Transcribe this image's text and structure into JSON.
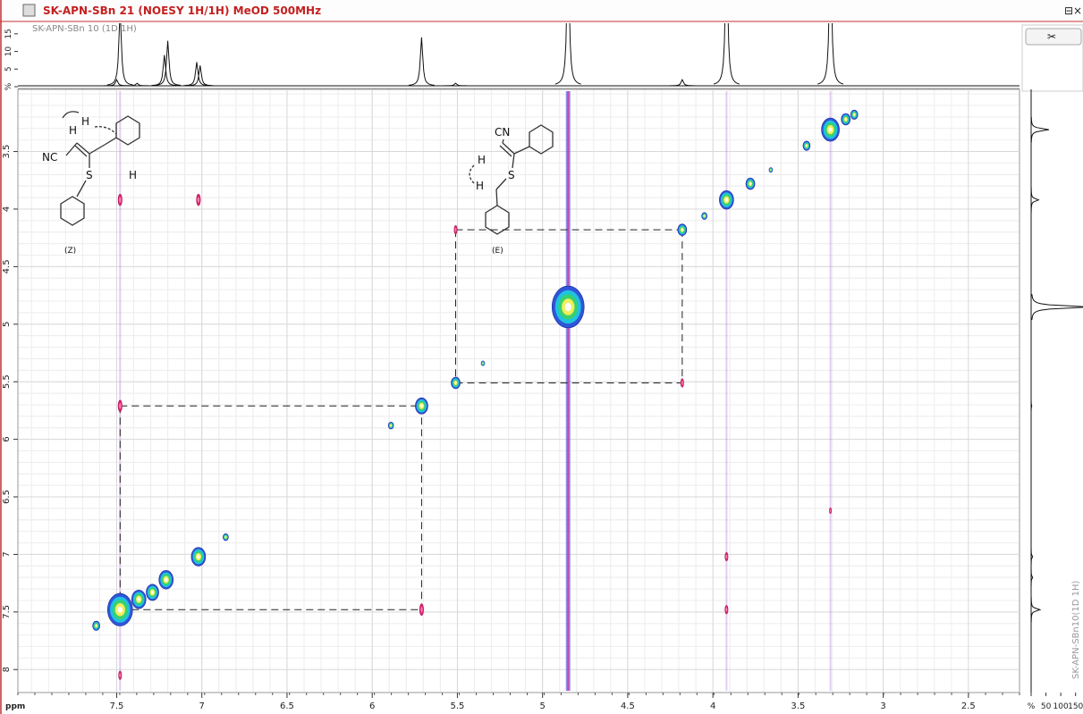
{
  "window": {
    "title": "SK-APN-SBn 21 (NOESY 1H/1H) MeOD 500MHz"
  },
  "chart_data": {
    "type": "contour2d",
    "x_label": "ppm",
    "xlim": [
      8.08,
      2.2
    ],
    "xticks": [
      7.5,
      7,
      6.5,
      6,
      5.5,
      5,
      4.5,
      4,
      3.5,
      3,
      2.5
    ],
    "ylim": [
      2.96,
      8.2
    ],
    "yticks": [
      3.5,
      4,
      4.5,
      5,
      5.5,
      6,
      6.5,
      7,
      7.5,
      8
    ],
    "grid": true,
    "contour_colors": [
      "#2f55d8",
      "#1fc3de",
      "#38d070",
      "#f0ee5a",
      "#ffffff"
    ],
    "cross_color": "#e2237a",
    "diagonal_peaks": {
      "x": [
        7.62,
        7.48,
        7.37,
        7.29,
        7.21,
        7.02,
        6.86,
        5.89,
        5.71,
        5.51,
        5.35,
        4.85,
        4.18,
        4.05,
        3.92,
        3.78,
        3.66,
        3.45,
        3.31,
        3.22,
        3.17
      ],
      "y": [
        7.62,
        7.48,
        7.39,
        7.33,
        7.22,
        7.02,
        6.85,
        5.88,
        5.71,
        5.51,
        5.34,
        4.85,
        4.18,
        4.06,
        3.92,
        3.78,
        3.66,
        3.45,
        3.31,
        3.22,
        3.18
      ],
      "size": [
        4,
        14,
        8,
        7,
        8,
        8,
        3,
        3,
        7,
        5,
        2,
        18,
        5,
        3,
        8,
        5,
        2,
        4,
        10,
        5,
        4
      ]
    },
    "cross_peaks": {
      "x": [
        7.48,
        5.71,
        7.48,
        7.02,
        3.92,
        3.92,
        5.51,
        4.18,
        7.48,
        3.31
      ],
      "y": [
        5.71,
        7.48,
        3.92,
        3.92,
        7.02,
        7.48,
        4.18,
        5.51,
        8.05,
        6.62
      ],
      "size": [
        4,
        4,
        4,
        4,
        3,
        3,
        3,
        3,
        3,
        2
      ]
    },
    "t1_streaks_x": [
      4.85,
      3.92,
      3.31,
      7.48
    ],
    "dashed_boxes": [
      {
        "x": [
          7.48,
          5.71
        ],
        "y": [
          5.71,
          7.48
        ]
      },
      {
        "x": [
          5.51,
          4.18
        ],
        "y": [
          4.18,
          5.51
        ]
      }
    ],
    "top_trace": {
      "label": "SK-APN-SBn 10 (1D 1H)",
      "ylim": [
        0,
        18
      ],
      "yticks": [
        {
          "value": 0,
          "label": "%"
        },
        5,
        10,
        15
      ],
      "peak_x": [
        7.5,
        7.48,
        7.38,
        7.22,
        7.2,
        7.03,
        7.01,
        5.71,
        5.51,
        4.85,
        4.18,
        3.92,
        3.31
      ],
      "peak_height": [
        2,
        22,
        1,
        9,
        13,
        7,
        6,
        14,
        1,
        40,
        2,
        40,
        40
      ]
    },
    "right_trace": {
      "label": "SK-APN-SBn10(1D 1H)",
      "xlim": [
        0,
        175
      ],
      "xticks": [
        {
          "value": 0,
          "label": "%"
        },
        50,
        100,
        150
      ],
      "peak_y": [
        3.31,
        3.92,
        4.85,
        5.71,
        7.02,
        7.2,
        7.48
      ],
      "peak_height": [
        60,
        25,
        200,
        2,
        5,
        5,
        30
      ]
    }
  },
  "structures": {
    "z": {
      "label": "(Z)",
      "nitrile": "NC",
      "h_vinyl": "H",
      "h_aryl": "H",
      "sulfur": "S"
    },
    "e": {
      "label": "(E)",
      "nitrile": "CN",
      "h_vinyl": "H",
      "h_methylene": "H",
      "sulfur": "S"
    }
  }
}
